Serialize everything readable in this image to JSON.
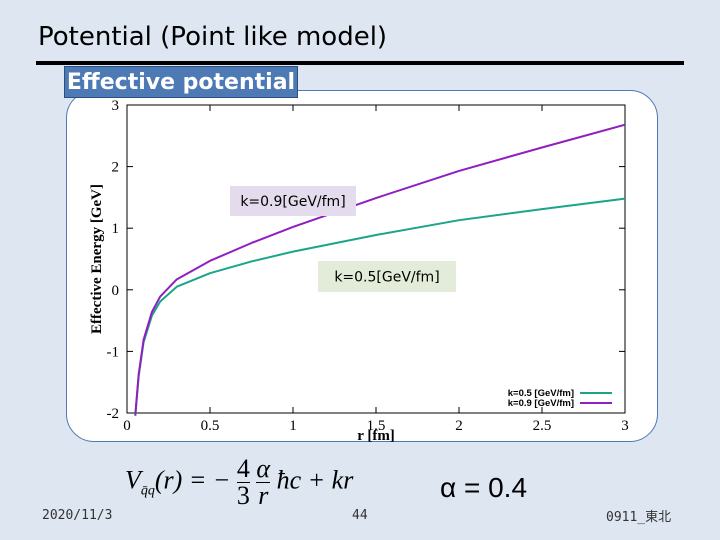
{
  "slide": {
    "title": "Potential (Point like model)",
    "tag": "Effective potential",
    "date": "2020/11/3",
    "page_number": "44",
    "footer_right": "0911_東北",
    "eq_v": "V",
    "eq_sub": "q̄q",
    "eq_r": "(r) = −",
    "eq_frac1_num": "4",
    "eq_frac1_den": "3",
    "eq_frac2_num": "α",
    "eq_frac2_den": "r",
    "eq_tail": "ħc + kr",
    "eq_alpha": "α = 0.4",
    "accent_color": "#4d79b4"
  },
  "chart_data": {
    "type": "line",
    "xlabel": "r [fm]",
    "ylabel": "Effective Energy [GeV]",
    "xlim": [
      0,
      3
    ],
    "ylim": [
      -2,
      3
    ],
    "x_ticks": [
      "0",
      "0.5",
      "1",
      "1.5",
      "2",
      "2.5",
      "3"
    ],
    "y_ticks": [
      "-2",
      "-1",
      "0",
      "1",
      "2",
      "3"
    ],
    "grid": false,
    "legend_position": "bottom-right",
    "annotations": [
      "k=0.9[GeV/fm]",
      "k=0.5[GeV/fm]"
    ],
    "series": [
      {
        "name": "k=0.5 [GeV/fm]",
        "color": "#1aa58a",
        "x": [
          0.05,
          0.07,
          0.1,
          0.15,
          0.2,
          0.3,
          0.5,
          0.75,
          1.0,
          1.5,
          2.0,
          2.5,
          3.0
        ],
        "y": [
          -2.05,
          -1.41,
          -0.85,
          -0.42,
          -0.19,
          0.05,
          0.27,
          0.46,
          0.62,
          0.89,
          1.13,
          1.31,
          1.48
        ]
      },
      {
        "name": "k=0.9 [GeV/fm]",
        "color": "#8f1fbf",
        "x": [
          0.05,
          0.07,
          0.1,
          0.15,
          0.2,
          0.3,
          0.5,
          0.75,
          1.0,
          1.5,
          2.0,
          2.5,
          3.0
        ],
        "y": [
          -2.03,
          -1.38,
          -0.81,
          -0.36,
          -0.11,
          0.17,
          0.47,
          0.76,
          1.02,
          1.49,
          1.93,
          2.31,
          2.68
        ]
      }
    ]
  }
}
